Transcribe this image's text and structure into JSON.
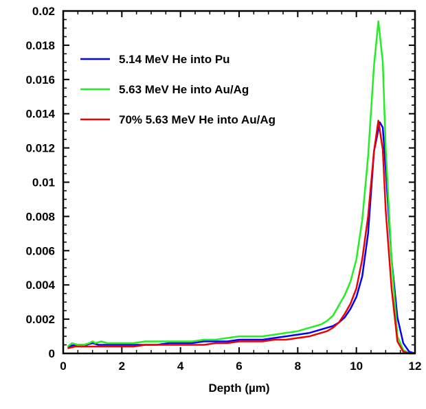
{
  "chart_data": {
    "type": "line",
    "title": "",
    "xlabel": "Depth (µm)",
    "ylabel": "",
    "xlim": [
      0,
      12
    ],
    "ylim": [
      0,
      0.02
    ],
    "x_ticks": [
      0,
      2,
      4,
      6,
      8,
      10,
      12
    ],
    "x_tick_labels": [
      "0",
      "2",
      "4",
      "6",
      "8",
      "10",
      "12"
    ],
    "y_ticks": [
      0,
      0.002,
      0.004,
      0.006,
      0.008,
      0.01,
      0.012,
      0.014,
      0.016,
      0.018,
      0.02
    ],
    "y_tick_labels": [
      "0",
      "0.002",
      "0.004",
      "0.006",
      "0.008",
      "0.01",
      "0.012",
      "0.014",
      "0.016",
      "0.018",
      "0.02"
    ],
    "grid": false,
    "legend_position": "top-left",
    "series": [
      {
        "name": "5.14 MeV He into Pu",
        "color": "#0000ff",
        "x": [
          0.15,
          0.4,
          0.6,
          0.8,
          1.0,
          1.2,
          1.4,
          1.6,
          1.8,
          2.0,
          2.4,
          2.8,
          3.2,
          3.6,
          4.0,
          4.4,
          4.8,
          5.2,
          5.6,
          6.0,
          6.4,
          6.8,
          7.2,
          7.6,
          8.0,
          8.4,
          8.8,
          9.0,
          9.2,
          9.4,
          9.6,
          9.8,
          10.0,
          10.2,
          10.4,
          10.6,
          10.8,
          10.9,
          11.0,
          11.2,
          11.4,
          11.6,
          11.8,
          12.0
        ],
        "y": [
          0.0004,
          0.0005,
          0.0005,
          0.0005,
          0.0006,
          0.0005,
          0.0005,
          0.0005,
          0.0005,
          0.0005,
          0.0005,
          0.0005,
          0.0005,
          0.0006,
          0.0006,
          0.0006,
          0.0007,
          0.0007,
          0.0007,
          0.0008,
          0.0008,
          0.0008,
          0.0009,
          0.001,
          0.0011,
          0.0012,
          0.0014,
          0.0015,
          0.0016,
          0.0018,
          0.0021,
          0.0026,
          0.0033,
          0.0045,
          0.007,
          0.0118,
          0.0135,
          0.0132,
          0.0108,
          0.0055,
          0.0021,
          0.0006,
          0.0001,
          0.0
        ]
      },
      {
        "name": "5.63 MeV He into Au/Ag",
        "color": "#22ee22",
        "x": [
          0.15,
          0.3,
          0.5,
          0.7,
          0.9,
          1.0,
          1.1,
          1.3,
          1.5,
          1.8,
          2.0,
          2.4,
          2.8,
          3.2,
          3.6,
          4.0,
          4.4,
          4.8,
          5.2,
          5.6,
          6.0,
          6.4,
          6.8,
          7.2,
          7.6,
          8.0,
          8.4,
          8.8,
          9.0,
          9.2,
          9.4,
          9.6,
          9.8,
          10.0,
          10.2,
          10.4,
          10.6,
          10.75,
          10.9,
          11.0,
          11.2,
          11.4,
          11.6,
          11.8,
          12.0
        ],
        "y": [
          0.0004,
          0.0006,
          0.0005,
          0.0005,
          0.0006,
          0.0007,
          0.0006,
          0.0007,
          0.0006,
          0.0006,
          0.0006,
          0.0006,
          0.0007,
          0.0007,
          0.0007,
          0.0007,
          0.0007,
          0.0008,
          0.0008,
          0.0009,
          0.001,
          0.001,
          0.001,
          0.0011,
          0.0012,
          0.0013,
          0.0015,
          0.0017,
          0.0019,
          0.0022,
          0.0028,
          0.0034,
          0.0042,
          0.0055,
          0.0078,
          0.0115,
          0.0168,
          0.0194,
          0.017,
          0.012,
          0.0055,
          0.001,
          0.0002,
          0.0,
          0.0
        ]
      },
      {
        "name": "70% 5.63 MeV He into Au/Ag",
        "color": "#ee0000",
        "x": [
          0.15,
          0.4,
          0.6,
          0.8,
          1.0,
          1.3,
          1.6,
          2.0,
          2.4,
          2.8,
          3.2,
          3.6,
          4.0,
          4.4,
          4.8,
          5.2,
          5.6,
          6.0,
          6.4,
          6.8,
          7.2,
          7.6,
          8.0,
          8.4,
          8.8,
          9.0,
          9.2,
          9.4,
          9.6,
          9.8,
          10.0,
          10.2,
          10.4,
          10.6,
          10.75,
          10.9,
          11.0,
          11.2,
          11.4,
          11.6,
          11.8,
          12.0
        ],
        "y": [
          0.0003,
          0.0004,
          0.0004,
          0.0004,
          0.0004,
          0.0004,
          0.0004,
          0.0004,
          0.0004,
          0.0005,
          0.0005,
          0.0005,
          0.0005,
          0.0005,
          0.0005,
          0.0006,
          0.0006,
          0.0007,
          0.0007,
          0.0007,
          0.0008,
          0.0008,
          0.0009,
          0.001,
          0.0012,
          0.0013,
          0.0015,
          0.0018,
          0.0023,
          0.0029,
          0.0038,
          0.0055,
          0.008,
          0.0118,
          0.0136,
          0.0119,
          0.0084,
          0.0038,
          0.0007,
          0.0001,
          0.0,
          0.0
        ]
      }
    ]
  }
}
